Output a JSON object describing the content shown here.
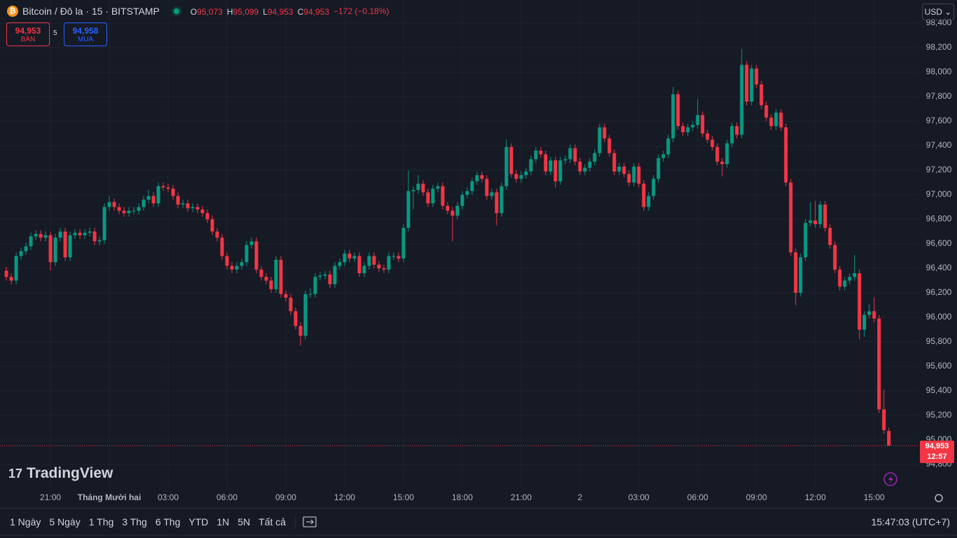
{
  "header": {
    "symbol": "Bitcoin / Đô la · 15 · BITSTAMP",
    "ohlc_text": [
      {
        "key": "O",
        "value": "95,073"
      },
      {
        "key": "H",
        "value": "95,099"
      },
      {
        "key": "L",
        "value": "94,953"
      },
      {
        "key": "C",
        "value": "94,953"
      }
    ],
    "change": "−172 (−0.18%)",
    "currency": "USD"
  },
  "trade": {
    "sell_price": "94,953",
    "sell_label": "BÁN",
    "spread": "5",
    "buy_price": "94,958",
    "buy_label": "MUA"
  },
  "logo": "TradingView",
  "last_price": {
    "label": "94,953",
    "countdown": "12:57"
  },
  "toolbar": {
    "ranges": [
      "1 Ngày",
      "5 Ngày",
      "1 Thg",
      "3 Thg",
      "6 Thg",
      "YTD",
      "1N",
      "5N",
      "Tất cả"
    ],
    "clock": "15:47:03 (UTC+7)"
  },
  "chart_data": {
    "type": "candlestick",
    "up_color": "#089981",
    "down_color": "#f23645",
    "grid": true,
    "ylim": [
      94617,
      98589
    ],
    "yticks": [
      {
        "value": 94800,
        "label": "94,800"
      },
      {
        "value": 95000,
        "label": "95,000"
      },
      {
        "value": 95200,
        "label": "95,200"
      },
      {
        "value": 95400,
        "label": "95,400"
      },
      {
        "value": 95600,
        "label": "95,600"
      },
      {
        "value": 95800,
        "label": "95,800"
      },
      {
        "value": 96000,
        "label": "96,000"
      },
      {
        "value": 96200,
        "label": "96,200"
      },
      {
        "value": 96400,
        "label": "96,400"
      },
      {
        "value": 96600,
        "label": "96,600"
      },
      {
        "value": 96800,
        "label": "96,800"
      },
      {
        "value": 97000,
        "label": "97,000"
      },
      {
        "value": 97200,
        "label": "97,200"
      },
      {
        "value": 97400,
        "label": "97,400"
      },
      {
        "value": 97600,
        "label": "97,600"
      },
      {
        "value": 97800,
        "label": "97,800"
      },
      {
        "value": 98000,
        "label": "98,000"
      },
      {
        "value": 98200,
        "label": "98,200"
      },
      {
        "value": 98400,
        "label": "98,400"
      }
    ],
    "xlim": [
      -1.3,
      185.9
    ],
    "xticks": [
      {
        "value": 9,
        "label": "21:00"
      },
      {
        "value": 21,
        "label": "Tháng Mười hai"
      },
      {
        "value": 33,
        "label": "03:00"
      },
      {
        "value": 45,
        "label": "06:00"
      },
      {
        "value": 57,
        "label": "09:00"
      },
      {
        "value": 69,
        "label": "12:00"
      },
      {
        "value": 81,
        "label": "15:00"
      },
      {
        "value": 93,
        "label": "18:00"
      },
      {
        "value": 105,
        "label": "21:00"
      },
      {
        "value": 117,
        "label": "2"
      },
      {
        "value": 129,
        "label": "03:00"
      },
      {
        "value": 141,
        "label": "06:00"
      },
      {
        "value": 153,
        "label": "09:00"
      },
      {
        "value": 165,
        "label": "12:00"
      },
      {
        "value": 177,
        "label": "15:00"
      }
    ],
    "ohlc": [
      [
        96380,
        96410,
        96300,
        96330
      ],
      [
        96330,
        96360,
        96270,
        96300
      ],
      [
        96300,
        96530,
        96270,
        96500
      ],
      [
        96500,
        96570,
        96470,
        96540
      ],
      [
        96540,
        96610,
        96510,
        96580
      ],
      [
        96580,
        96690,
        96550,
        96660
      ],
      [
        96660,
        96710,
        96630,
        96680
      ],
      [
        96680,
        96710,
        96620,
        96650
      ],
      [
        96650,
        96700,
        96620,
        96670
      ],
      [
        96670,
        96700,
        96380,
        96450
      ],
      [
        96450,
        96680,
        96420,
        96650
      ],
      [
        96650,
        96730,
        96620,
        96700
      ],
      [
        96700,
        96730,
        96460,
        96490
      ],
      [
        96490,
        96700,
        96460,
        96670
      ],
      [
        96670,
        96720,
        96640,
        96690
      ],
      [
        96690,
        96720,
        96640,
        96670
      ],
      [
        96670,
        96720,
        96640,
        96690
      ],
      [
        96690,
        96730,
        96660,
        96700
      ],
      [
        96700,
        96730,
        96590,
        96620
      ],
      [
        96620,
        96660,
        96590,
        96630
      ],
      [
        96630,
        96930,
        96600,
        96900
      ],
      [
        96900,
        96990,
        96870,
        96940
      ],
      [
        96940,
        96970,
        96870,
        96900
      ],
      [
        96900,
        96930,
        96840,
        96870
      ],
      [
        96870,
        96900,
        96820,
        96850
      ],
      [
        96850,
        96900,
        96820,
        96870
      ],
      [
        96870,
        96900,
        96840,
        96870
      ],
      [
        96870,
        96930,
        96840,
        96900
      ],
      [
        96900,
        96990,
        96870,
        96960
      ],
      [
        96960,
        97040,
        96930,
        96990
      ],
      [
        96990,
        97020,
        96900,
        96930
      ],
      [
        96930,
        97100,
        96900,
        97070
      ],
      [
        97070,
        97100,
        97030,
        97060
      ],
      [
        97060,
        97090,
        97020,
        97050
      ],
      [
        97050,
        97080,
        96960,
        96990
      ],
      [
        96990,
        97020,
        96890,
        96920
      ],
      [
        96920,
        96960,
        96890,
        96930
      ],
      [
        96930,
        96960,
        96860,
        96890
      ],
      [
        96890,
        96930,
        96860,
        96900
      ],
      [
        96900,
        96930,
        96850,
        96880
      ],
      [
        96880,
        96910,
        96820,
        96850
      ],
      [
        96850,
        96880,
        96770,
        96800
      ],
      [
        96800,
        96830,
        96670,
        96700
      ],
      [
        96700,
        96730,
        96620,
        96650
      ],
      [
        96650,
        96680,
        96470,
        96500
      ],
      [
        96500,
        96530,
        96390,
        96420
      ],
      [
        96420,
        96450,
        96360,
        96390
      ],
      [
        96390,
        96450,
        96360,
        96420
      ],
      [
        96420,
        96480,
        96390,
        96450
      ],
      [
        96450,
        96620,
        96420,
        96590
      ],
      [
        96590,
        96650,
        96560,
        96620
      ],
      [
        96620,
        96650,
        96360,
        96390
      ],
      [
        96390,
        96420,
        96300,
        96330
      ],
      [
        96330,
        96360,
        96270,
        96300
      ],
      [
        96300,
        96330,
        96200,
        96230
      ],
      [
        96230,
        96500,
        96200,
        96470
      ],
      [
        96470,
        96500,
        96160,
        96190
      ],
      [
        96190,
        96220,
        96130,
        96160
      ],
      [
        96160,
        96190,
        96020,
        96050
      ],
      [
        96050,
        96080,
        95900,
        95930
      ],
      [
        95930,
        95960,
        95770,
        95850
      ],
      [
        95850,
        96220,
        95820,
        96190
      ],
      [
        96190,
        96240,
        96160,
        96190
      ],
      [
        96190,
        96360,
        96160,
        96330
      ],
      [
        96330,
        96370,
        96300,
        96340
      ],
      [
        96340,
        96380,
        96310,
        96350
      ],
      [
        96350,
        96380,
        96240,
        96270
      ],
      [
        96270,
        96450,
        96240,
        96420
      ],
      [
        96420,
        96480,
        96390,
        96450
      ],
      [
        96450,
        96550,
        96420,
        96520
      ],
      [
        96520,
        96550,
        96450,
        96480
      ],
      [
        96480,
        96530,
        96450,
        96500
      ],
      [
        96500,
        96530,
        96330,
        96360
      ],
      [
        96360,
        96450,
        96330,
        96420
      ],
      [
        96420,
        96530,
        96390,
        96500
      ],
      [
        96500,
        96530,
        96400,
        96430
      ],
      [
        96430,
        96460,
        96370,
        96400
      ],
      [
        96400,
        96430,
        96360,
        96390
      ],
      [
        96390,
        96530,
        96360,
        96500
      ],
      [
        96500,
        96530,
        96470,
        96500
      ],
      [
        96500,
        96530,
        96450,
        96480
      ],
      [
        96480,
        96760,
        96450,
        96730
      ],
      [
        96730,
        97200,
        96700,
        97030
      ],
      [
        97030,
        97070,
        96880,
        97040
      ],
      [
        97040,
        97160,
        97010,
        97090
      ],
      [
        97090,
        97120,
        96990,
        97020
      ],
      [
        97020,
        97050,
        96900,
        96930
      ],
      [
        96930,
        97080,
        96900,
        97050
      ],
      [
        97050,
        97100,
        97020,
        97070
      ],
      [
        97070,
        97100,
        96880,
        96910
      ],
      [
        96910,
        96940,
        96840,
        96870
      ],
      [
        96870,
        96900,
        96620,
        96830
      ],
      [
        96830,
        96940,
        96800,
        96910
      ],
      [
        96910,
        97030,
        96880,
        97000
      ],
      [
        97000,
        97060,
        96970,
        97030
      ],
      [
        97030,
        97140,
        97000,
        97110
      ],
      [
        97110,
        97190,
        97080,
        97160
      ],
      [
        97160,
        97190,
        97100,
        97130
      ],
      [
        97130,
        97160,
        96960,
        96990
      ],
      [
        96990,
        97050,
        96960,
        97020
      ],
      [
        97020,
        97050,
        96750,
        96850
      ],
      [
        96850,
        97100,
        96820,
        97070
      ],
      [
        97070,
        97450,
        97040,
        97390
      ],
      [
        97390,
        97420,
        97140,
        97170
      ],
      [
        97170,
        97200,
        97100,
        97130
      ],
      [
        97130,
        97190,
        97100,
        97160
      ],
      [
        97160,
        97220,
        97130,
        97190
      ],
      [
        97190,
        97320,
        97160,
        97290
      ],
      [
        97290,
        97390,
        97260,
        97360
      ],
      [
        97360,
        97390,
        97300,
        97330
      ],
      [
        97330,
        97360,
        97160,
        97190
      ],
      [
        97190,
        97310,
        97160,
        97280
      ],
      [
        97280,
        97310,
        97060,
        97110
      ],
      [
        97110,
        97310,
        97080,
        97280
      ],
      [
        97280,
        97320,
        97250,
        97290
      ],
      [
        97290,
        97410,
        97260,
        97380
      ],
      [
        97380,
        97410,
        97240,
        97270
      ],
      [
        97270,
        97300,
        97160,
        97190
      ],
      [
        97190,
        97250,
        97160,
        97220
      ],
      [
        97220,
        97300,
        97190,
        97270
      ],
      [
        97270,
        97370,
        97240,
        97340
      ],
      [
        97340,
        97580,
        97310,
        97550
      ],
      [
        97550,
        97580,
        97430,
        97460
      ],
      [
        97460,
        97490,
        97310,
        97340
      ],
      [
        97340,
        97370,
        97160,
        97190
      ],
      [
        97190,
        97260,
        97160,
        97230
      ],
      [
        97230,
        97260,
        97140,
        97170
      ],
      [
        97170,
        97200,
        97070,
        97100
      ],
      [
        97100,
        97260,
        97070,
        97230
      ],
      [
        97230,
        97260,
        97060,
        97090
      ],
      [
        97090,
        97120,
        96870,
        96900
      ],
      [
        96900,
        97020,
        96870,
        96990
      ],
      [
        96990,
        97160,
        96960,
        97130
      ],
      [
        97130,
        97330,
        97100,
        97300
      ],
      [
        97300,
        97360,
        97270,
        97330
      ],
      [
        97330,
        97490,
        97300,
        97460
      ],
      [
        97460,
        97880,
        97430,
        97820
      ],
      [
        97820,
        97850,
        97530,
        97560
      ],
      [
        97560,
        97590,
        97480,
        97510
      ],
      [
        97510,
        97580,
        97480,
        97550
      ],
      [
        97550,
        97600,
        97520,
        97570
      ],
      [
        97570,
        97780,
        97540,
        97650
      ],
      [
        97650,
        97680,
        97470,
        97500
      ],
      [
        97500,
        97530,
        97420,
        97450
      ],
      [
        97450,
        97480,
        97360,
        97390
      ],
      [
        97390,
        97420,
        97240,
        97270
      ],
      [
        97270,
        97300,
        97150,
        97250
      ],
      [
        97250,
        97450,
        97220,
        97420
      ],
      [
        97420,
        97590,
        97390,
        97560
      ],
      [
        97560,
        97590,
        97460,
        97490
      ],
      [
        97490,
        98190,
        97460,
        98060
      ],
      [
        98060,
        98090,
        97730,
        97760
      ],
      [
        97760,
        98060,
        97730,
        98030
      ],
      [
        98030,
        98060,
        97870,
        97900
      ],
      [
        97900,
        97930,
        97700,
        97730
      ],
      [
        97730,
        97760,
        97600,
        97630
      ],
      [
        97630,
        97660,
        97530,
        97560
      ],
      [
        97560,
        97700,
        97530,
        97670
      ],
      [
        97670,
        97700,
        97520,
        97550
      ],
      [
        97550,
        97580,
        97070,
        97100
      ],
      [
        97100,
        97130,
        96500,
        96530
      ],
      [
        96530,
        96560,
        96100,
        96200
      ],
      [
        96200,
        96520,
        96170,
        96490
      ],
      [
        96490,
        96800,
        96460,
        96770
      ],
      [
        96770,
        96940,
        96740,
        96790
      ],
      [
        96790,
        96950,
        96730,
        96760
      ],
      [
        96760,
        96950,
        96730,
        96920
      ],
      [
        96920,
        96950,
        96700,
        96730
      ],
      [
        96730,
        96760,
        96560,
        96590
      ],
      [
        96590,
        96620,
        96360,
        96390
      ],
      [
        96390,
        96420,
        96220,
        96250
      ],
      [
        96250,
        96330,
        96220,
        96300
      ],
      [
        96300,
        96360,
        96270,
        96330
      ],
      [
        96330,
        96510,
        96300,
        96360
      ],
      [
        96360,
        96390,
        95820,
        95900
      ],
      [
        95900,
        96050,
        95840,
        96020
      ],
      [
        96020,
        96110,
        95990,
        96050
      ],
      [
        96050,
        96160,
        95960,
        95990
      ],
      [
        95990,
        96020,
        95220,
        95250
      ],
      [
        95250,
        95410,
        95050,
        95080
      ],
      [
        95073,
        95099,
        94953,
        94953
      ]
    ]
  }
}
